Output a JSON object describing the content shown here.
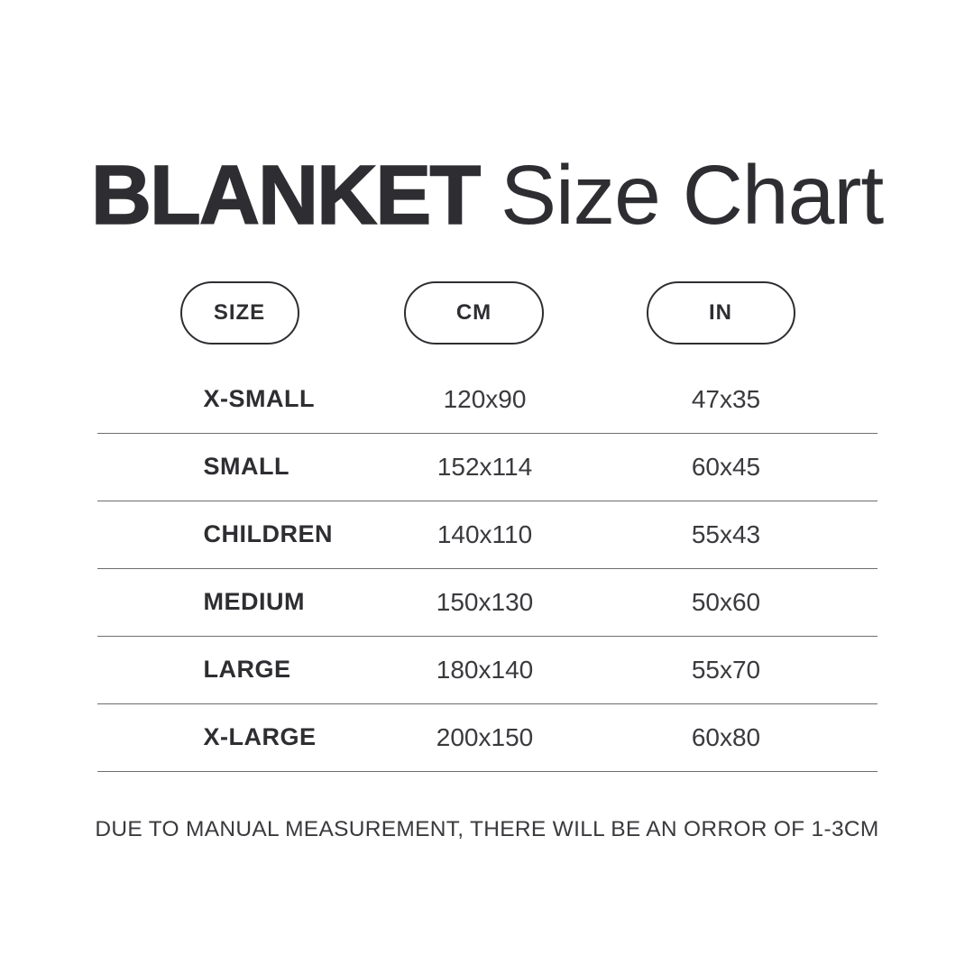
{
  "page": {
    "background": "#ffffff",
    "text_color": "#2e2e32",
    "divider_color": "#6e6e6e",
    "pill_border_color": "#2e2e32"
  },
  "title": {
    "bold": "BLANKET",
    "regular": "Size Chart"
  },
  "table": {
    "headers": [
      {
        "id": "size",
        "label": "SIZE"
      },
      {
        "id": "cm",
        "label": "CM"
      },
      {
        "id": "in",
        "label": "IN"
      }
    ],
    "rows": [
      {
        "size": "X-SMALL",
        "cm": "120x90",
        "in": "47x35"
      },
      {
        "size": "SMALL",
        "cm": "152x114",
        "in": "60x45"
      },
      {
        "size": "CHILDREN",
        "cm": "140x110",
        "in": "55x43"
      },
      {
        "size": "MEDIUM",
        "cm": "150x130",
        "in": "50x60"
      },
      {
        "size": "LARGE",
        "cm": "180x140",
        "in": "55x70"
      },
      {
        "size": "X-LARGE",
        "cm": "200x150",
        "in": "60x80"
      }
    ]
  },
  "footer": {
    "note": "DUE TO MANUAL MEASUREMENT, THERE WILL BE AN ORROR OF 1-3CM"
  },
  "chart_data": {
    "type": "table",
    "title": "BLANKET Size Chart",
    "columns": [
      "SIZE",
      "CM",
      "IN"
    ],
    "rows": [
      [
        "X-SMALL",
        "120x90",
        "47x35"
      ],
      [
        "SMALL",
        "152x114",
        "60x45"
      ],
      [
        "CHILDREN",
        "140x110",
        "55x43"
      ],
      [
        "MEDIUM",
        "150x130",
        "50x60"
      ],
      [
        "LARGE",
        "180x140",
        "55x70"
      ],
      [
        "X-LARGE",
        "200x150",
        "60x80"
      ]
    ],
    "note": "DUE TO MANUAL MEASUREMENT, THERE WILL BE AN ORROR OF 1-3CM"
  }
}
